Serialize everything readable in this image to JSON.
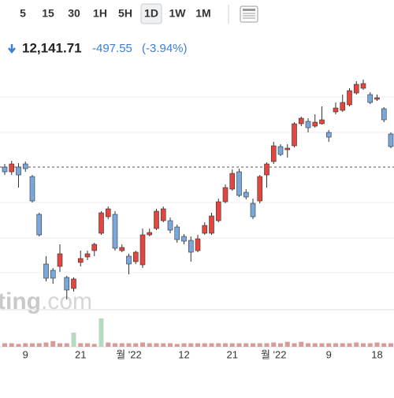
{
  "toolbar": {
    "buttons": [
      "5",
      "15",
      "30",
      "1H",
      "5H",
      "1D",
      "1W",
      "1M"
    ],
    "selected": "1D"
  },
  "quote": {
    "price": "12,141.71",
    "change": "-497.55",
    "change_percent": "(-3.94%)"
  },
  "watermark": {
    "prefix": "ting",
    "suffix": ".com"
  },
  "chart_data": {
    "type": "candlestick",
    "categories": [
      null,
      null,
      null,
      "9",
      null,
      null,
      null,
      null,
      null,
      null,
      null,
      "21",
      null,
      null,
      null,
      null,
      null,
      null,
      "월 '22",
      null,
      null,
      null,
      null,
      null,
      null,
      null,
      "12",
      null,
      null,
      null,
      null,
      null,
      null,
      "21",
      null,
      null,
      null,
      null,
      null,
      "월 '22",
      null,
      null,
      null,
      null,
      null,
      null,
      null,
      "9",
      null,
      null,
      null,
      null,
      null,
      null,
      "18",
      null,
      null
    ],
    "open": [
      178,
      172,
      178,
      182,
      166,
      118,
      55,
      47,
      52,
      38,
      24,
      57,
      64,
      72,
      94,
      115,
      118,
      72,
      65,
      58,
      54,
      92,
      100,
      110,
      110,
      102,
      90,
      85,
      72,
      94,
      94,
      110,
      134,
      150,
      172,
      146,
      132,
      135,
      168,
      185,
      204,
      200,
      205,
      233,
      236,
      230,
      233,
      222,
      248,
      250,
      257,
      272,
      278,
      270,
      264,
      252,
      220
    ],
    "high": [
      182,
      186,
      183,
      185,
      168,
      120,
      65,
      50,
      80,
      40,
      38,
      72,
      72,
      82,
      122,
      128,
      122,
      80,
      68,
      72,
      100,
      100,
      125,
      128,
      114,
      105,
      93,
      90,
      92,
      108,
      120,
      138,
      156,
      175,
      176,
      150,
      138,
      168,
      184,
      210,
      207,
      207,
      235,
      242,
      240,
      245,
      255,
      225,
      260,
      270,
      278,
      287,
      289,
      273,
      270,
      254,
      222
    ],
    "low": [
      168,
      168,
      152,
      172,
      133,
      90,
      33,
      30,
      45,
      10,
      20,
      52,
      60,
      65,
      92,
      112,
      72,
      70,
      42,
      55,
      50,
      90,
      98,
      108,
      94,
      82,
      80,
      58,
      70,
      92,
      92,
      108,
      132,
      148,
      140,
      137,
      112,
      132,
      152,
      182,
      192,
      190,
      203,
      230,
      222,
      228,
      232,
      210,
      245,
      248,
      255,
      270,
      276,
      258,
      262,
      235,
      202
    ],
    "close": [
      172,
      182,
      168,
      176,
      135,
      92,
      37,
      37,
      68,
      22,
      36,
      62,
      68,
      80,
      120,
      125,
      75,
      76,
      55,
      70,
      92,
      95,
      122,
      125,
      98,
      86,
      84,
      70,
      87,
      104,
      116,
      134,
      152,
      170,
      142,
      140,
      115,
      166,
      182,
      205,
      194,
      202,
      233,
      240,
      228,
      235,
      238,
      216,
      253,
      260,
      275,
      283,
      284,
      260,
      266,
      238,
      204
    ],
    "up_color": "#e2463f",
    "down_color": "#7aa7dc",
    "ylim": [
      0,
      300
    ],
    "reference_line": 178,
    "volume": {
      "values": [
        5,
        5,
        4,
        5,
        5,
        5,
        6,
        8,
        5,
        5,
        20,
        5,
        5,
        4,
        40,
        6,
        5,
        5,
        5,
        5,
        6,
        5,
        5,
        5,
        5,
        4,
        5,
        5,
        5,
        5,
        5,
        5,
        5,
        5,
        5,
        5,
        5,
        5,
        5,
        6,
        5,
        7,
        5,
        7,
        5,
        5,
        5,
        5,
        5,
        5,
        5,
        6,
        5,
        5,
        6,
        5,
        5
      ],
      "ylim": [
        0,
        50
      ],
      "color": "#d89a9a",
      "alt_color": "#b4dbbf",
      "alt_indexes": [
        10,
        14
      ]
    }
  }
}
